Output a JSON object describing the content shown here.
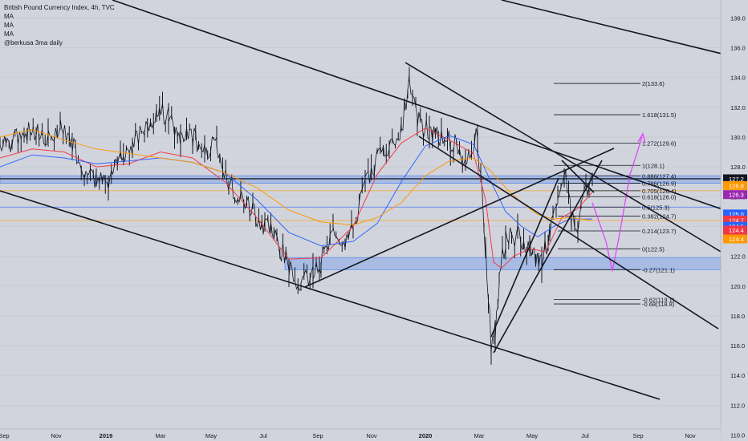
{
  "chart_data": {
    "type": "line",
    "title": "British Pound Currency Index, 4h, TVC",
    "indicators": [
      "MA",
      "MA",
      "MA",
      "@berkusa 3ma daily"
    ],
    "x_ticks": [
      "Sep",
      "Nov",
      "2019",
      "Mar",
      "May",
      "Jul",
      "Sep",
      "Nov",
      "2020",
      "Mar",
      "May",
      "Jul",
      "Sep",
      "Nov"
    ],
    "y_ticks": [
      "138.0",
      "136.0",
      "134.0",
      "132.0",
      "130.0",
      "128.0",
      "126.0",
      "124.0",
      "122.0",
      "120.0",
      "118.0",
      "116.0",
      "114.0",
      "112.0",
      "110.0"
    ],
    "ylim": [
      109.6,
      139.2
    ],
    "series": [
      {
        "values": [
          [
            0,
            129.5
          ],
          [
            15,
            129.4
          ],
          [
            30,
            130.5
          ],
          [
            45,
            130.2
          ],
          [
            60,
            129.8
          ],
          [
            75,
            130.5
          ],
          [
            90,
            129.6
          ],
          [
            105,
            127.8
          ],
          [
            120,
            127.2
          ],
          [
            135,
            126.6
          ],
          [
            150,
            128.5
          ],
          [
            165,
            129.5
          ],
          [
            180,
            130.5
          ],
          [
            195,
            131.9
          ],
          [
            210,
            131.3
          ],
          [
            225,
            130.0
          ],
          [
            240,
            129.9
          ],
          [
            255,
            129.4
          ],
          [
            270,
            129.2
          ],
          [
            285,
            127.0
          ],
          [
            300,
            125.8
          ],
          [
            315,
            125.2
          ],
          [
            330,
            124.1
          ],
          [
            345,
            123.2
          ],
          [
            360,
            121.2
          ],
          [
            375,
            120.2
          ],
          [
            390,
            120.9
          ],
          [
            400,
            121.6
          ],
          [
            415,
            123.5
          ],
          [
            430,
            123.2
          ],
          [
            440,
            123.8
          ],
          [
            455,
            127.0
          ],
          [
            470,
            128.5
          ],
          [
            485,
            129.7
          ],
          [
            500,
            130.3
          ],
          [
            510,
            134.0
          ],
          [
            520,
            131.0
          ],
          [
            535,
            130.4
          ],
          [
            550,
            130.0
          ],
          [
            565,
            129.6
          ],
          [
            580,
            128.5
          ],
          [
            595,
            130.0
          ],
          [
            605,
            122.5
          ],
          [
            612,
            116.0
          ],
          [
            617,
            117.0
          ],
          [
            622,
            120.5
          ],
          [
            630,
            123.2
          ],
          [
            645,
            123.5
          ],
          [
            660,
            122.7
          ],
          [
            675,
            121.5
          ],
          [
            685,
            123.8
          ],
          [
            695,
            125.2
          ],
          [
            705,
            127.9
          ],
          [
            712,
            124.5
          ],
          [
            720,
            124.0
          ],
          [
            730,
            126.2
          ],
          [
            738,
            127.2
          ]
        ]
      },
      {
        "color": "#f23645",
        "values": [
          [
            0,
            128.6
          ],
          [
            40,
            129.2
          ],
          [
            80,
            129.0
          ],
          [
            120,
            128.0
          ],
          [
            160,
            128.2
          ],
          [
            200,
            129.0
          ],
          [
            240,
            128.6
          ],
          [
            280,
            127.0
          ],
          [
            320,
            124.6
          ],
          [
            360,
            121.8
          ],
          [
            400,
            121.9
          ],
          [
            440,
            124.0
          ],
          [
            470,
            127.5
          ],
          [
            500,
            129.6
          ],
          [
            530,
            130.6
          ],
          [
            560,
            129.8
          ],
          [
            590,
            128.9
          ],
          [
            605,
            125.8
          ],
          [
            615,
            121.6
          ],
          [
            625,
            121.2
          ],
          [
            640,
            122.0
          ],
          [
            660,
            122.5
          ],
          [
            680,
            122.3
          ],
          [
            700,
            124.6
          ],
          [
            720,
            125.2
          ],
          [
            738,
            126.3
          ]
        ]
      },
      {
        "color": "#2962ff",
        "values": [
          [
            0,
            128.0
          ],
          [
            40,
            128.8
          ],
          [
            80,
            128.6
          ],
          [
            120,
            128.2
          ],
          [
            160,
            128.4
          ],
          [
            200,
            128.6
          ],
          [
            240,
            128.3
          ],
          [
            280,
            127.6
          ],
          [
            320,
            125.8
          ],
          [
            360,
            123.6
          ],
          [
            400,
            122.7
          ],
          [
            440,
            123.0
          ],
          [
            470,
            124.2
          ],
          [
            500,
            127.0
          ],
          [
            530,
            129.4
          ],
          [
            560,
            130.1
          ],
          [
            590,
            129.5
          ],
          [
            610,
            127.2
          ],
          [
            630,
            125.0
          ],
          [
            650,
            124.0
          ],
          [
            670,
            123.3
          ],
          [
            690,
            124.0
          ],
          [
            710,
            124.5
          ],
          [
            738,
            124.5
          ]
        ]
      },
      {
        "color": "#ff9800",
        "values": [
          [
            0,
            130.0
          ],
          [
            40,
            130.5
          ],
          [
            80,
            129.8
          ],
          [
            120,
            129.2
          ],
          [
            160,
            128.9
          ],
          [
            200,
            128.6
          ],
          [
            240,
            128.3
          ],
          [
            280,
            127.6
          ],
          [
            320,
            126.6
          ],
          [
            360,
            125.1
          ],
          [
            400,
            124.3
          ],
          [
            440,
            124.1
          ],
          [
            470,
            124.6
          ],
          [
            500,
            125.6
          ],
          [
            530,
            127.4
          ],
          [
            560,
            128.4
          ],
          [
            590,
            128.6
          ],
          [
            610,
            127.8
          ],
          [
            630,
            126.6
          ],
          [
            650,
            125.6
          ],
          [
            670,
            124.8
          ],
          [
            690,
            124.5
          ],
          [
            710,
            124.6
          ],
          [
            738,
            124.4
          ]
        ]
      },
      {
        "color": "#e040fb",
        "values": [
          [
            738,
            125.6
          ],
          [
            755,
            123.0
          ],
          [
            763,
            121.0
          ],
          [
            772,
            123.5
          ],
          [
            785,
            127.5
          ],
          [
            800,
            130.0
          ]
        ]
      }
    ],
    "fib_levels": [
      {
        "label": "2(133.6)",
        "value": 133.6
      },
      {
        "label": "1.618(131.5)",
        "value": 131.5
      },
      {
        "label": "1.272(129.6)",
        "value": 129.6
      },
      {
        "label": "1(128.1)",
        "value": 128.1
      },
      {
        "label": "0.886(127.4)",
        "value": 127.4
      },
      {
        "label": "0.786(126.9)",
        "value": 126.9
      },
      {
        "label": "0.705(126.4)",
        "value": 126.4
      },
      {
        "label": "0.618(126.0)",
        "value": 126.0
      },
      {
        "label": "0.5(125.3)",
        "value": 125.3
      },
      {
        "label": "0.382(124.7)",
        "value": 124.7
      },
      {
        "label": "0.214(123.7)",
        "value": 123.7
      },
      {
        "label": "0(122.5)",
        "value": 122.5
      },
      {
        "label": "-0.27(121.1)",
        "value": 121.1
      },
      {
        "label": "-0.62(119.1)",
        "value": 119.1
      },
      {
        "label": "-0.68(118.8)",
        "value": 118.8
      }
    ],
    "zones": [
      [
        126.9,
        127.4
      ],
      [
        121.1,
        121.9
      ]
    ],
    "hlines": [
      {
        "value": 127.2,
        "color": "#131722"
      },
      {
        "value": 126.4,
        "color": "#ff9800"
      },
      {
        "value": 125.3,
        "color": "#2962ff"
      },
      {
        "value": 124.4,
        "color": "#ff9800"
      }
    ],
    "price_labels": [
      {
        "text": "127.2",
        "value": 127.2,
        "color": "#131722"
      },
      {
        "text": "126.8",
        "value": 126.8,
        "color": "#ff9800"
      },
      {
        "text": "126.3",
        "value": 126.3,
        "color": "#9c27b0"
      },
      {
        "text": "125.0",
        "value": 125.0,
        "color": "#2962ff"
      },
      {
        "text": "124.7",
        "value": 124.7,
        "color": "#f23645"
      },
      {
        "text": "124.5",
        "value": 124.5,
        "color": "#2962ff"
      },
      {
        "text": "124.4",
        "value": 124.4,
        "color": "#f23645"
      },
      {
        "text": "124.4",
        "value": 124.4,
        "color": "#ff9800"
      }
    ],
    "colors": {
      "background": "#d1d4dc",
      "candle": "#131722",
      "zone": "#5b8def",
      "axis_text": "#131722",
      "grid": "#c3c6ce"
    }
  }
}
